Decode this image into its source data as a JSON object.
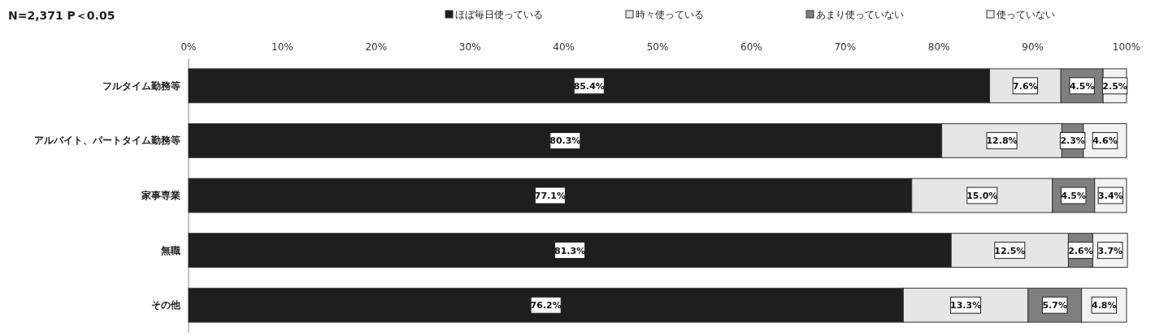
{
  "chart_data": {
    "type": "bar",
    "orientation": "horizontal",
    "stacked": true,
    "title": "N=2,371  P＜0.05",
    "categories": [
      "フルタイム勤務等",
      "アルバイト、パートタイム勤務等",
      "家事専業",
      "無職",
      "その他"
    ],
    "series": [
      {
        "name": "ほぼ毎日使っている",
        "color": "#1e1e1e",
        "values": [
          85.4,
          80.3,
          77.1,
          81.3,
          76.2
        ],
        "value_labels": [
          "85.4%",
          "80.3%",
          "77.1%",
          "81.3%",
          "76.2%"
        ]
      },
      {
        "name": "時々使っている",
        "color": "#e6e6e6",
        "values": [
          7.6,
          12.8,
          15.0,
          12.5,
          13.3
        ],
        "value_labels": [
          "7.6%",
          "12.8%",
          "15.0%",
          "12.5%",
          "13.3%"
        ]
      },
      {
        "name": "あまり使っていない",
        "color": "#7f7f7f",
        "values": [
          4.5,
          2.3,
          4.5,
          2.6,
          5.7
        ],
        "value_labels": [
          "4.5%",
          "2.3%",
          "4.5%",
          "2.6%",
          "5.7%"
        ]
      },
      {
        "name": "使っていない",
        "color": "#f2f2f2",
        "values": [
          2.5,
          4.6,
          3.4,
          3.7,
          4.8
        ],
        "value_labels": [
          "2.5%",
          "4.6%",
          "3.4%",
          "3.7%",
          "4.8%"
        ]
      }
    ],
    "xlim": [
      0,
      100
    ],
    "xticks": [
      {
        "value": 0,
        "label": "0%"
      },
      {
        "value": 10,
        "label": "10%"
      },
      {
        "value": 20,
        "label": "20%"
      },
      {
        "value": 30,
        "label": "30%"
      },
      {
        "value": 40,
        "label": "40%"
      },
      {
        "value": 50,
        "label": "50%"
      },
      {
        "value": 60,
        "label": "60%"
      },
      {
        "value": 70,
        "label": "70%"
      },
      {
        "value": 80,
        "label": "80%"
      },
      {
        "value": 90,
        "label": "90%"
      },
      {
        "value": 100,
        "label": "100%"
      }
    ],
    "legend": "top"
  }
}
